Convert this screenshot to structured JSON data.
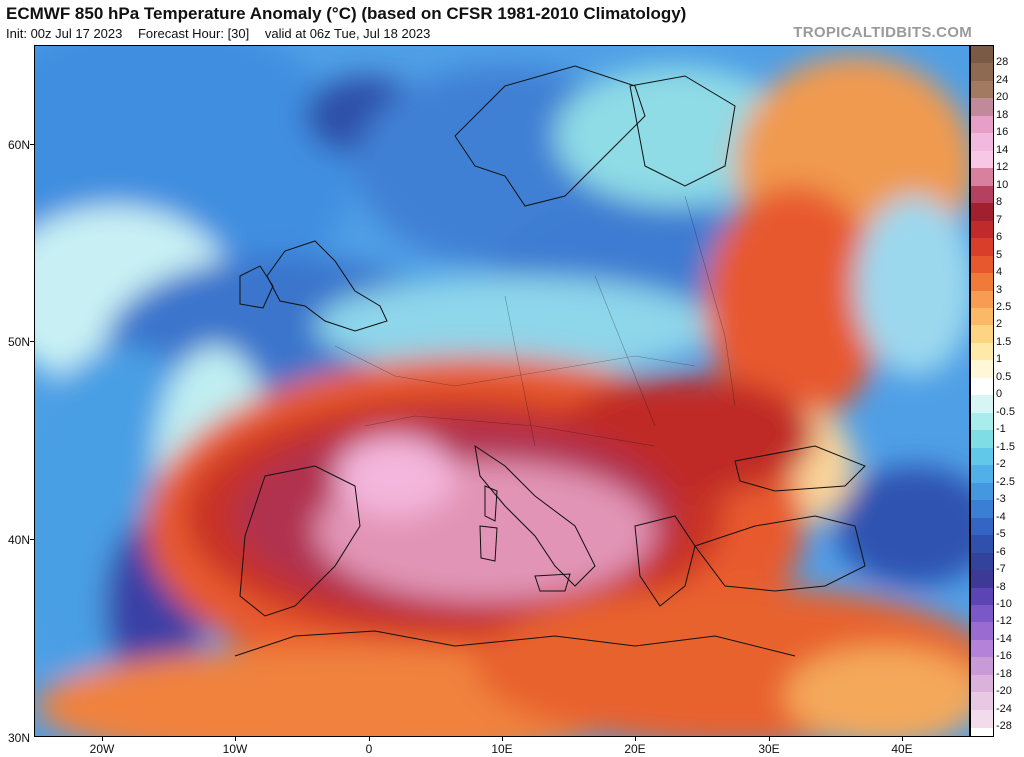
{
  "header": {
    "title": "ECMWF 850 hPa Temperature Anomaly (°C) (based on CFSR 1981-2010 Climatology)",
    "init": "Init: 00z Jul 17 2023",
    "forecast_hour": "Forecast Hour: [30]",
    "valid": "valid at 06z Tue, Jul 18 2023",
    "credit": "TROPICALTIDBITS.COM"
  },
  "map": {
    "lat_labels": [
      "60N",
      "50N",
      "40N",
      "30N"
    ],
    "lon_labels": [
      "20W",
      "10W",
      "0",
      "10E",
      "20E",
      "30E",
      "40E"
    ],
    "land_fill": "#f3ece8"
  },
  "colorbar": {
    "labels": [
      "28",
      "24",
      "20",
      "18",
      "16",
      "14",
      "12",
      "10",
      "8",
      "7",
      "6",
      "5",
      "4",
      "3",
      "2.5",
      "2",
      "1.5",
      "1",
      "0.5",
      "0",
      "-0.5",
      "-1",
      "-1.5",
      "-2",
      "-2.5",
      "-3",
      "-4",
      "-5",
      "-6",
      "-7",
      "-8",
      "-10",
      "-12",
      "-14",
      "-16",
      "-18",
      "-20",
      "-24",
      "-28"
    ],
    "colors": [
      "#7a5a44",
      "#8e6a52",
      "#a27a62",
      "#c08a9a",
      "#e6a0c8",
      "#f3b8dd",
      "#f7c8e6",
      "#d8809e",
      "#b64060",
      "#a02030",
      "#c02a2a",
      "#d83e2a",
      "#e8582e",
      "#f07a3a",
      "#f79c52",
      "#fbb866",
      "#fdd482",
      "#fee9a8",
      "#fff7d6",
      "#ffffff",
      "#d8f5f5",
      "#a8ecee",
      "#7fdde6",
      "#62c8ea",
      "#4fb0ea",
      "#4398e0",
      "#3b7fd4",
      "#3565c4",
      "#3050ae",
      "#33429a",
      "#3d3a96",
      "#5b44b4",
      "#7a58c8",
      "#9a6cd2",
      "#b482d8",
      "#c99ad8",
      "#dbb2dc",
      "#e8c8e2",
      "#f2dcec"
    ]
  }
}
